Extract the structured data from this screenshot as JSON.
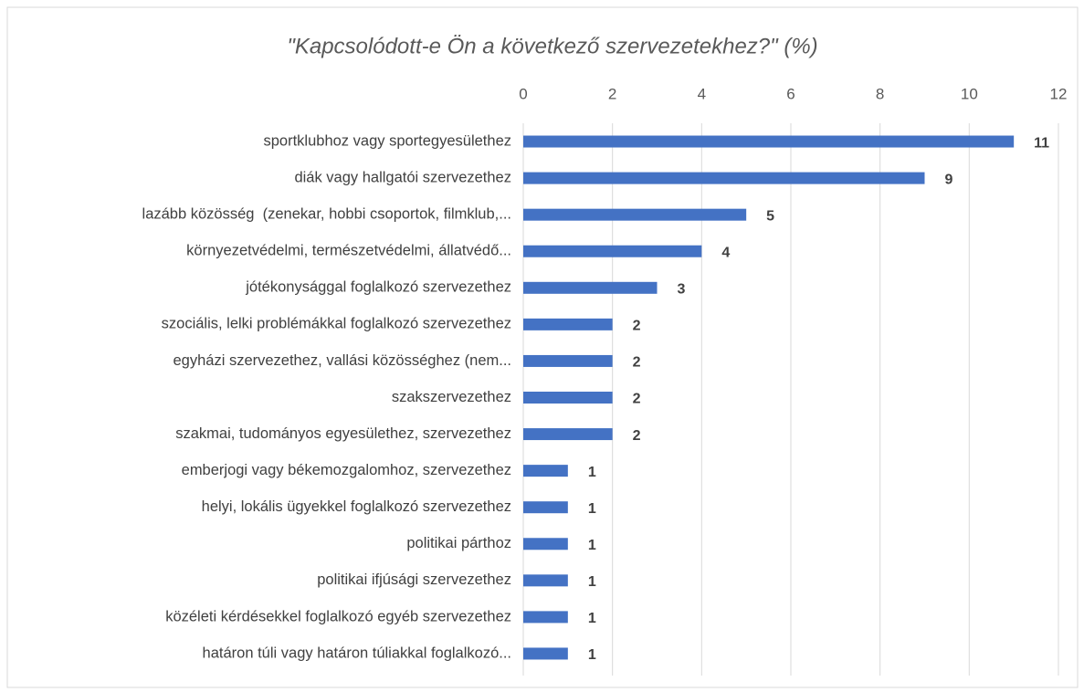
{
  "chart_data": {
    "type": "bar",
    "orientation": "horizontal",
    "title": "\"Kapcsolódott-e Ön a következő szervezetekhez?\" (%)",
    "categories": [
      "sportklubhoz vagy sportegyesülethez",
      "diák vagy hallgatói szervezethez",
      "lazább közösség  (zenekar, hobbi csoportok, filmklub,...",
      "környezetvédelmi, természetvédelmi, állatvédő...",
      "jótékonysággal foglalkozó szervezethez",
      "szociális, lelki problémákkal foglalkozó szervezethez",
      "egyházi szervezethez, vallási közösséghez (nem...",
      "szakszervezethez",
      "szakmai, tudományos egyesülethez, szervezethez",
      "emberjogi vagy békemozgalomhoz, szervezethez",
      "helyi, lokális ügyekkel foglalkozó szervezethez",
      "politikai párthoz",
      "politikai ifjúsági szervezethez",
      "közéleti kérdésekkel foglalkozó egyéb szervezethez",
      "határon túli vagy határon túliakkal foglalkozó..."
    ],
    "values": [
      11,
      9,
      5,
      4,
      3,
      2,
      2,
      2,
      2,
      1,
      1,
      1,
      1,
      1,
      1
    ],
    "color": "#4472c4",
    "xlim": [
      0,
      12
    ],
    "xticks": [
      0,
      2,
      4,
      6,
      8,
      10,
      12
    ],
    "grid": true
  }
}
